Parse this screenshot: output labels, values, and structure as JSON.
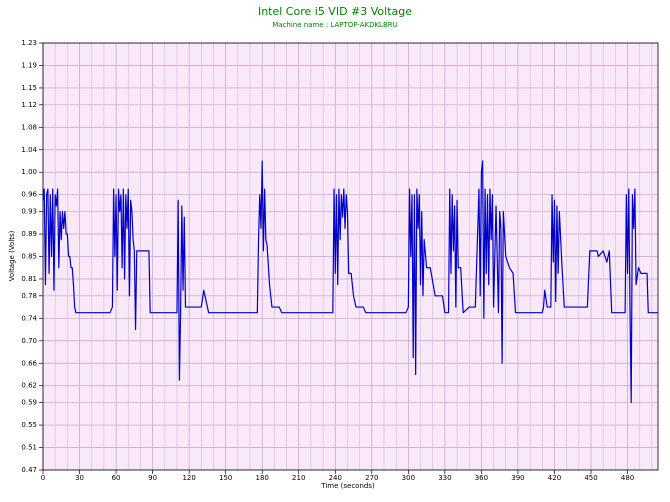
{
  "chart_data": {
    "type": "line",
    "title": "Intel Core i5 VID #3 Voltage",
    "subtitle": "Machine name : LAPTOP-AKDKLBRU",
    "x_label": "Time (seconds)",
    "y_label": "Voltage (Volts)",
    "color": "#0000c8",
    "grid": true,
    "xlim": [
      0,
      505
    ],
    "ylim": [
      0.47,
      1.23
    ],
    "xticks": [
      0,
      30,
      60,
      90,
      120,
      150,
      180,
      210,
      240,
      270,
      300,
      330,
      360,
      390,
      420,
      450,
      480
    ],
    "yticks": [
      0.47,
      0.51,
      0.55,
      0.59,
      0.62,
      0.66,
      {
        "value": 0.7,
        "label": "0.70"
      },
      0.74,
      0.78,
      0.81,
      0.85,
      0.89,
      0.93,
      0.96,
      {
        "value": 1,
        "label": "1.00"
      },
      1.04,
      1.08,
      1.12,
      1.15,
      1.19,
      1.23
    ],
    "x": [
      0,
      1,
      2,
      3,
      4,
      5,
      6,
      7,
      8,
      9,
      10,
      11,
      12,
      13,
      14,
      15,
      16,
      17,
      18,
      19,
      20,
      21,
      22,
      23,
      24,
      25,
      26,
      27,
      40,
      55,
      57,
      58,
      59,
      60,
      61,
      62,
      63,
      64,
      65,
      66,
      67,
      68,
      69,
      70,
      71,
      72,
      73,
      74,
      75,
      76,
      77,
      80,
      87,
      88,
      110,
      111,
      112,
      113,
      114,
      115,
      116,
      117,
      120,
      130,
      132,
      134,
      136,
      176,
      177,
      178,
      179,
      180,
      181,
      182,
      183,
      184,
      186,
      188,
      194,
      196,
      238,
      239,
      240,
      241,
      242,
      243,
      244,
      245,
      246,
      247,
      248,
      249,
      250,
      251,
      253,
      255,
      257,
      263,
      265,
      298,
      300,
      301,
      302,
      303,
      304,
      305,
      306,
      307,
      308,
      309,
      310,
      311,
      312,
      313,
      315,
      318,
      322,
      328,
      330,
      333,
      334,
      335,
      336,
      337,
      338,
      339,
      340,
      341,
      343,
      345,
      350,
      355,
      358,
      359,
      360,
      361,
      362,
      363,
      364,
      365,
      366,
      367,
      368,
      369,
      370,
      372,
      374,
      375,
      376,
      377,
      378,
      380,
      383,
      386,
      388,
      410,
      411,
      412,
      414,
      417,
      418,
      419,
      420,
      421,
      422,
      423,
      424,
      426,
      428,
      447,
      449,
      455,
      456,
      460,
      463,
      465,
      467,
      478,
      479,
      480,
      481,
      482,
      483,
      484,
      485,
      486,
      487,
      489,
      491,
      496,
      497,
      505
    ],
    "values": [
      0.95,
      0.97,
      0.8,
      0.96,
      0.97,
      0.82,
      0.96,
      0.85,
      0.97,
      0.79,
      0.96,
      0.94,
      0.97,
      0.83,
      0.93,
      0.88,
      0.93,
      0.9,
      0.93,
      0.89,
      0.89,
      0.85,
      0.85,
      0.83,
      0.83,
      0.8,
      0.76,
      0.75,
      0.75,
      0.75,
      0.76,
      0.97,
      0.85,
      0.96,
      0.79,
      0.97,
      0.93,
      0.96,
      0.83,
      0.97,
      0.81,
      0.96,
      0.9,
      0.97,
      0.78,
      0.95,
      0.93,
      0.88,
      0.86,
      0.72,
      0.86,
      0.86,
      0.86,
      0.75,
      0.75,
      0.95,
      0.63,
      0.75,
      0.94,
      0.79,
      0.92,
      0.76,
      0.76,
      0.76,
      0.79,
      0.77,
      0.75,
      0.75,
      0.88,
      0.96,
      0.9,
      1.02,
      0.86,
      0.97,
      0.88,
      0.87,
      0.8,
      0.76,
      0.76,
      0.75,
      0.75,
      0.97,
      0.82,
      0.96,
      0.8,
      0.97,
      0.88,
      0.96,
      0.92,
      0.97,
      0.9,
      0.96,
      0.93,
      0.82,
      0.82,
      0.78,
      0.76,
      0.76,
      0.75,
      0.75,
      0.76,
      0.97,
      0.85,
      0.96,
      0.67,
      0.96,
      0.64,
      0.97,
      0.9,
      0.96,
      0.8,
      0.93,
      0.78,
      0.88,
      0.83,
      0.83,
      0.78,
      0.78,
      0.75,
      0.75,
      0.97,
      0.82,
      0.96,
      0.86,
      0.94,
      0.76,
      0.95,
      0.83,
      0.83,
      0.75,
      0.76,
      0.76,
      0.97,
      0.78,
      1.0,
      1.02,
      0.74,
      0.97,
      0.82,
      0.96,
      0.8,
      0.97,
      0.88,
      0.96,
      0.76,
      0.94,
      0.75,
      0.93,
      0.9,
      0.66,
      0.93,
      0.85,
      0.83,
      0.82,
      0.75,
      0.75,
      0.76,
      0.79,
      0.76,
      0.76,
      0.96,
      0.84,
      0.95,
      0.77,
      0.94,
      0.82,
      0.93,
      0.84,
      0.76,
      0.76,
      0.86,
      0.86,
      0.85,
      0.86,
      0.84,
      0.86,
      0.75,
      0.75,
      0.96,
      0.82,
      0.97,
      0.76,
      0.59,
      0.96,
      0.9,
      0.97,
      0.8,
      0.83,
      0.82,
      0.82,
      0.75,
      0.75
    ]
  }
}
